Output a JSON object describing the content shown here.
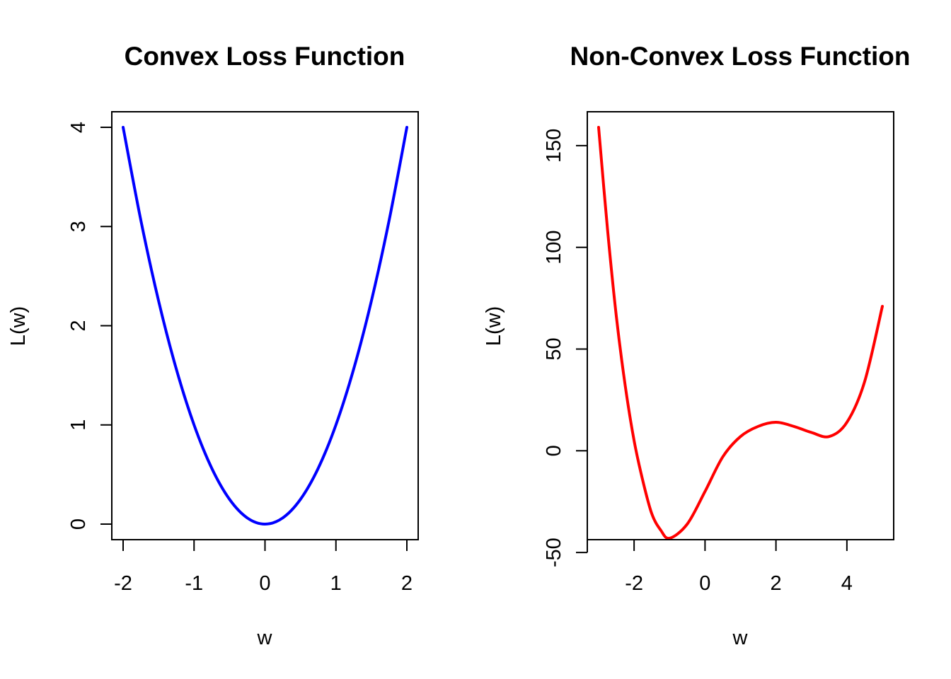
{
  "chart_data": [
    {
      "type": "line",
      "title": "Convex Loss Function",
      "xlabel": "w",
      "ylabel": "L(w)",
      "xlim": [
        -2,
        2
      ],
      "ylim": [
        0,
        4
      ],
      "x_ticks": [
        -2,
        -1,
        0,
        1,
        2
      ],
      "y_ticks": [
        0,
        1,
        2,
        3,
        4
      ],
      "x_tick_labels": [
        "-2",
        "-1",
        "0",
        "1",
        "2"
      ],
      "y_tick_labels": [
        "0",
        "1",
        "2",
        "3",
        "4"
      ],
      "grid": false,
      "series": [
        {
          "color": "#0000ff",
          "x": [
            -2,
            -1.75,
            -1.5,
            -1.25,
            -1,
            -0.75,
            -0.5,
            -0.25,
            0,
            0.25,
            0.5,
            0.75,
            1,
            1.25,
            1.5,
            1.75,
            2
          ],
          "y": [
            4,
            3.0625,
            2.25,
            1.5625,
            1,
            0.5625,
            0.25,
            0.0625,
            0,
            0.0625,
            0.25,
            0.5625,
            1,
            1.5625,
            2.25,
            3.0625,
            4
          ]
        }
      ]
    },
    {
      "type": "line",
      "title": "Non-Convex Loss Function",
      "xlabel": "w",
      "ylabel": "L(w)",
      "xlim": [
        -3,
        5
      ],
      "ylim": [
        -43,
        159
      ],
      "x_ticks": [
        -2,
        0,
        2,
        4
      ],
      "y_ticks": [
        -50,
        0,
        50,
        100,
        150
      ],
      "x_tick_labels": [
        "-2",
        "0",
        "2",
        "4"
      ],
      "y_tick_labels": [
        "-50",
        "0",
        "50",
        "100",
        "150"
      ],
      "grid": false,
      "series": [
        {
          "color": "#ff0000",
          "x": [
            -3,
            -2.75,
            -2.5,
            -2.25,
            -2,
            -1.75,
            -1.5,
            -1.25,
            -1,
            -0.5,
            0,
            0.5,
            1,
            1.5,
            2,
            2.5,
            3,
            3.5,
            4,
            4.5,
            5
          ],
          "y": [
            159,
            109,
            66,
            32,
            5,
            -15,
            -31,
            -39,
            -43,
            -36,
            -20,
            -3,
            7,
            12,
            14,
            12,
            9,
            7,
            14,
            34,
            71
          ]
        }
      ]
    }
  ]
}
